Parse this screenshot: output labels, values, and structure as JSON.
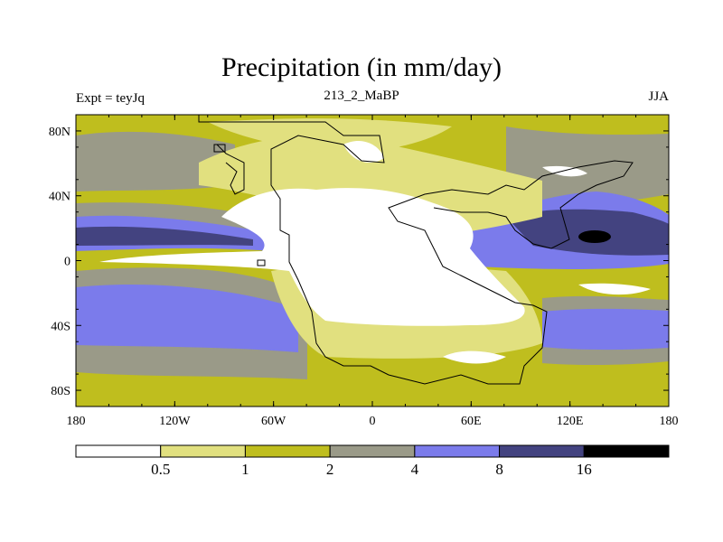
{
  "chart_data": {
    "type": "heatmap",
    "title": "Precipitation (in mm/day)",
    "left_label": "Expt = teyJq",
    "center_label": "213_2_MaBP",
    "right_label": "JJA",
    "lon_ticks": [
      "180",
      "120W",
      "60W",
      "0",
      "60E",
      "120E",
      "180"
    ],
    "lat_ticks": [
      "80N",
      "40N",
      "0",
      "40S",
      "80S"
    ],
    "lon_values": [
      -180,
      -120,
      -60,
      0,
      60,
      120,
      180
    ],
    "lat_values": [
      80,
      40,
      0,
      -40,
      -80
    ],
    "lat_range": [
      -90,
      90
    ],
    "lon_range": [
      -180,
      180
    ],
    "colorbar": {
      "levels": [
        "0.5",
        "1",
        "2",
        "4",
        "8",
        "16"
      ],
      "colors": [
        "#ffffff",
        "#e1e07f",
        "#bfbe1e",
        "#9a9a88",
        "#7b7beb",
        "#434380",
        "#000000"
      ]
    }
  }
}
